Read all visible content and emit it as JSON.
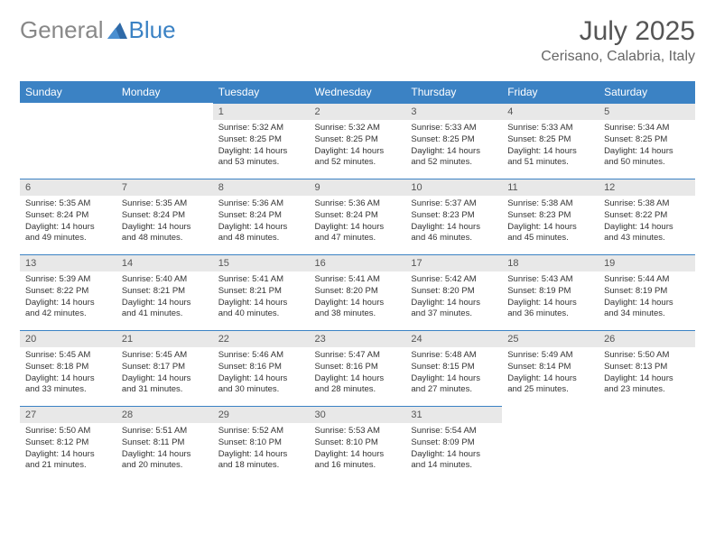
{
  "brand": {
    "part1": "General",
    "part2": "Blue"
  },
  "title": "July 2025",
  "location": "Cerisano, Calabria, Italy",
  "colors": {
    "header_bg": "#3b82c4",
    "header_text": "#ffffff",
    "daynum_bg": "#e8e8e8",
    "border": "#3b82c4",
    "text": "#333333",
    "title_color": "#555555"
  },
  "weekdays": [
    "Sunday",
    "Monday",
    "Tuesday",
    "Wednesday",
    "Thursday",
    "Friday",
    "Saturday"
  ],
  "weeks": [
    [
      {
        "empty": true
      },
      {
        "empty": true
      },
      {
        "num": "1",
        "sunrise": "5:32 AM",
        "sunset": "8:25 PM",
        "daylight": "14 hours and 53 minutes."
      },
      {
        "num": "2",
        "sunrise": "5:32 AM",
        "sunset": "8:25 PM",
        "daylight": "14 hours and 52 minutes."
      },
      {
        "num": "3",
        "sunrise": "5:33 AM",
        "sunset": "8:25 PM",
        "daylight": "14 hours and 52 minutes."
      },
      {
        "num": "4",
        "sunrise": "5:33 AM",
        "sunset": "8:25 PM",
        "daylight": "14 hours and 51 minutes."
      },
      {
        "num": "5",
        "sunrise": "5:34 AM",
        "sunset": "8:25 PM",
        "daylight": "14 hours and 50 minutes."
      }
    ],
    [
      {
        "num": "6",
        "sunrise": "5:35 AM",
        "sunset": "8:24 PM",
        "daylight": "14 hours and 49 minutes."
      },
      {
        "num": "7",
        "sunrise": "5:35 AM",
        "sunset": "8:24 PM",
        "daylight": "14 hours and 48 minutes."
      },
      {
        "num": "8",
        "sunrise": "5:36 AM",
        "sunset": "8:24 PM",
        "daylight": "14 hours and 48 minutes."
      },
      {
        "num": "9",
        "sunrise": "5:36 AM",
        "sunset": "8:24 PM",
        "daylight": "14 hours and 47 minutes."
      },
      {
        "num": "10",
        "sunrise": "5:37 AM",
        "sunset": "8:23 PM",
        "daylight": "14 hours and 46 minutes."
      },
      {
        "num": "11",
        "sunrise": "5:38 AM",
        "sunset": "8:23 PM",
        "daylight": "14 hours and 45 minutes."
      },
      {
        "num": "12",
        "sunrise": "5:38 AM",
        "sunset": "8:22 PM",
        "daylight": "14 hours and 43 minutes."
      }
    ],
    [
      {
        "num": "13",
        "sunrise": "5:39 AM",
        "sunset": "8:22 PM",
        "daylight": "14 hours and 42 minutes."
      },
      {
        "num": "14",
        "sunrise": "5:40 AM",
        "sunset": "8:21 PM",
        "daylight": "14 hours and 41 minutes."
      },
      {
        "num": "15",
        "sunrise": "5:41 AM",
        "sunset": "8:21 PM",
        "daylight": "14 hours and 40 minutes."
      },
      {
        "num": "16",
        "sunrise": "5:41 AM",
        "sunset": "8:20 PM",
        "daylight": "14 hours and 38 minutes."
      },
      {
        "num": "17",
        "sunrise": "5:42 AM",
        "sunset": "8:20 PM",
        "daylight": "14 hours and 37 minutes."
      },
      {
        "num": "18",
        "sunrise": "5:43 AM",
        "sunset": "8:19 PM",
        "daylight": "14 hours and 36 minutes."
      },
      {
        "num": "19",
        "sunrise": "5:44 AM",
        "sunset": "8:19 PM",
        "daylight": "14 hours and 34 minutes."
      }
    ],
    [
      {
        "num": "20",
        "sunrise": "5:45 AM",
        "sunset": "8:18 PM",
        "daylight": "14 hours and 33 minutes."
      },
      {
        "num": "21",
        "sunrise": "5:45 AM",
        "sunset": "8:17 PM",
        "daylight": "14 hours and 31 minutes."
      },
      {
        "num": "22",
        "sunrise": "5:46 AM",
        "sunset": "8:16 PM",
        "daylight": "14 hours and 30 minutes."
      },
      {
        "num": "23",
        "sunrise": "5:47 AM",
        "sunset": "8:16 PM",
        "daylight": "14 hours and 28 minutes."
      },
      {
        "num": "24",
        "sunrise": "5:48 AM",
        "sunset": "8:15 PM",
        "daylight": "14 hours and 27 minutes."
      },
      {
        "num": "25",
        "sunrise": "5:49 AM",
        "sunset": "8:14 PM",
        "daylight": "14 hours and 25 minutes."
      },
      {
        "num": "26",
        "sunrise": "5:50 AM",
        "sunset": "8:13 PM",
        "daylight": "14 hours and 23 minutes."
      }
    ],
    [
      {
        "num": "27",
        "sunrise": "5:50 AM",
        "sunset": "8:12 PM",
        "daylight": "14 hours and 21 minutes."
      },
      {
        "num": "28",
        "sunrise": "5:51 AM",
        "sunset": "8:11 PM",
        "daylight": "14 hours and 20 minutes."
      },
      {
        "num": "29",
        "sunrise": "5:52 AM",
        "sunset": "8:10 PM",
        "daylight": "14 hours and 18 minutes."
      },
      {
        "num": "30",
        "sunrise": "5:53 AM",
        "sunset": "8:10 PM",
        "daylight": "14 hours and 16 minutes."
      },
      {
        "num": "31",
        "sunrise": "5:54 AM",
        "sunset": "8:09 PM",
        "daylight": "14 hours and 14 minutes."
      },
      {
        "empty": true
      },
      {
        "empty": true
      }
    ]
  ]
}
